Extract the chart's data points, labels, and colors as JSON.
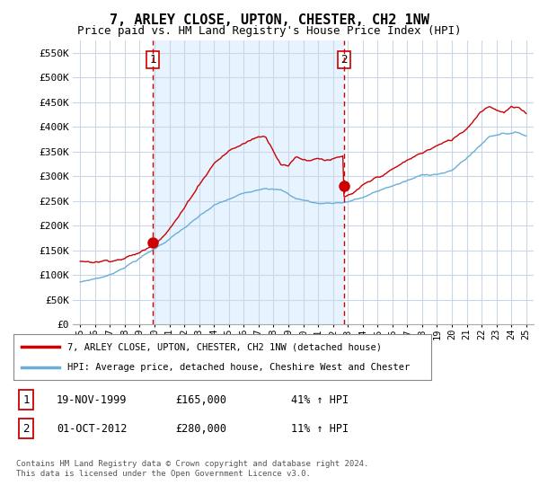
{
  "title": "7, ARLEY CLOSE, UPTON, CHESTER, CH2 1NW",
  "subtitle": "Price paid vs. HM Land Registry's House Price Index (HPI)",
  "ylim": [
    0,
    575000
  ],
  "yticks": [
    0,
    50000,
    100000,
    150000,
    200000,
    250000,
    300000,
    350000,
    400000,
    450000,
    500000,
    550000
  ],
  "ytick_labels": [
    "£0",
    "£50K",
    "£100K",
    "£150K",
    "£200K",
    "£250K",
    "£300K",
    "£350K",
    "£400K",
    "£450K",
    "£500K",
    "£550K"
  ],
  "x_start_year": 1995,
  "x_end_year": 2025,
  "sale1_date": 1999.88,
  "sale1_price": 165000,
  "sale2_date": 2012.75,
  "sale2_price": 280000,
  "hpi_color": "#6baed6",
  "price_color": "#cc0000",
  "vline_color": "#cc0000",
  "background_color": "#ffffff",
  "grid_color": "#c8d8e8",
  "shading_color": "#ddeeff",
  "legend_label_red": "7, ARLEY CLOSE, UPTON, CHESTER, CH2 1NW (detached house)",
  "legend_label_blue": "HPI: Average price, detached house, Cheshire West and Chester",
  "table_row1": [
    "1",
    "19-NOV-1999",
    "£165,000",
    "41% ↑ HPI"
  ],
  "table_row2": [
    "2",
    "01-OCT-2012",
    "£280,000",
    "11% ↑ HPI"
  ],
  "footer": "Contains HM Land Registry data © Crown copyright and database right 2024.\nThis data is licensed under the Open Government Licence v3.0.",
  "title_fontsize": 11,
  "subtitle_fontsize": 9
}
